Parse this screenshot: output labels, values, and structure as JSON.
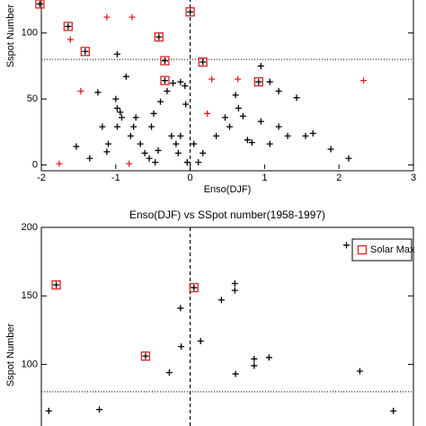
{
  "chart_data": [
    {
      "type": "scatter",
      "xlabel": "Enso(DJF)",
      "ylabel": "Sspot Number",
      "xlim": [
        -2,
        3
      ],
      "ylim": [
        -3,
        125
      ],
      "xticks": [
        -2,
        -1,
        0,
        1,
        2,
        3
      ],
      "yticks": [
        0,
        50,
        100
      ],
      "hlines": [
        80
      ],
      "vlines": [
        0
      ],
      "series": [
        {
          "color": "#000000",
          "marker": "plus",
          "x": [
            -0.98,
            -1.24,
            -1.0,
            -0.86,
            -1.18,
            -1.53,
            -1.35,
            -1.1,
            -1.12,
            -0.98,
            -0.94,
            -0.92,
            -0.98,
            -0.73,
            -0.76,
            -0.8,
            -0.67,
            -0.61,
            -0.55,
            -0.47,
            -0.43,
            -0.52,
            -0.49,
            -0.4,
            -0.31,
            -0.23,
            -0.13,
            -0.07,
            -0.06,
            -0.04,
            -0.25,
            -0.19,
            -0.16,
            0.05,
            0.17,
            0.35,
            0.47,
            0.53,
            0.61,
            0.65,
            0.71,
            0.95,
            1.07,
            1.19,
            1.31,
            0.95,
            1.07,
            1.19,
            1.55,
            1.65,
            1.89,
            2.13,
            1.43,
            0.83,
            -0.13,
            0.11,
            0.77,
            -2.02,
            -1.64,
            -1.41,
            -0.42,
            -0.34,
            -0.34,
            0,
            0.17,
            0.92
          ],
          "y": [
            84,
            55,
            50,
            67,
            29,
            14,
            5,
            16,
            10,
            43,
            40,
            36,
            29,
            36,
            29,
            22,
            16,
            9,
            5,
            2,
            11,
            29,
            39,
            48,
            56,
            62,
            63,
            60,
            46,
            2,
            22,
            16,
            9,
            16,
            9,
            22,
            36,
            29,
            53,
            43,
            37,
            33,
            16,
            29,
            22,
            75,
            63,
            56,
            22,
            24,
            12,
            5,
            51,
            17,
            22,
            2,
            19,
            122,
            105,
            86,
            97,
            79,
            64,
            116,
            78,
            63
          ]
        },
        {
          "color": "#e02020",
          "marker": "plus",
          "x": [
            -1.12,
            -0.78,
            -1.61,
            -1.47,
            -1.76,
            -0.82,
            0.29,
            0.64,
            2.33,
            0.23
          ],
          "y": [
            112,
            112,
            95,
            56,
            1,
            1,
            65,
            65,
            64,
            39
          ]
        },
        {
          "color": "#e02020",
          "marker": "square",
          "x": [
            -2.02,
            -1.64,
            -1.41,
            -0.42,
            -0.34,
            -0.34,
            0,
            0.17,
            0.92
          ],
          "y": [
            122,
            105,
            86,
            97,
            79,
            64,
            116,
            78,
            63
          ]
        }
      ]
    },
    {
      "type": "scatter",
      "title": "Enso(DJF) vs SSpot number(1958-1997)",
      "ylabel": "Sspot Number",
      "xlim": [
        -2,
        3
      ],
      "ylim": [
        55,
        200
      ],
      "yticks": [
        100,
        150,
        200
      ],
      "hlines": [
        80
      ],
      "vlines": [
        0
      ],
      "legend": "upper right",
      "series": [
        {
          "color": "#000000",
          "marker": "plus",
          "x": [
            -1.8,
            -1.9,
            -1.22,
            -0.6,
            -0.28,
            -0.13,
            -0.12,
            0.05,
            0.14,
            0.42,
            0.6,
            0.6,
            0.61,
            0.86,
            0.86,
            1.06,
            2.1,
            2.28,
            2.73
          ],
          "y": [
            158,
            66,
            67,
            106,
            94,
            141,
            113,
            156,
            117,
            147,
            159,
            154,
            93,
            104,
            99,
            105,
            187,
            95,
            66
          ]
        },
        {
          "name": "Solar Max",
          "color": "#e02020",
          "marker": "square",
          "x": [
            -1.8,
            -0.6,
            0.05
          ],
          "y": [
            158,
            106,
            156
          ]
        }
      ]
    }
  ]
}
